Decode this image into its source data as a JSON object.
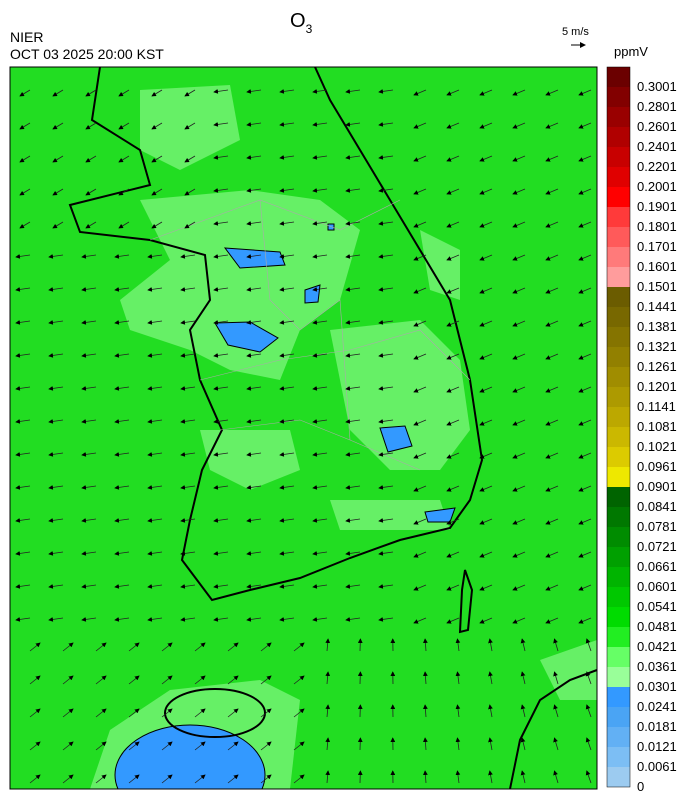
{
  "header": {
    "title": "O",
    "title_sub": "3",
    "agency": "NIER",
    "datetime": "OCT 03 2025 20:00 KST"
  },
  "wind_scale": {
    "label": "5 m/s"
  },
  "colorbar": {
    "unit": "ppmV",
    "labels": [
      "0.3001",
      "0.2801",
      "0.2601",
      "0.2401",
      "0.2201",
      "0.2001",
      "0.1901",
      "0.1801",
      "0.1701",
      "0.1601",
      "0.1501",
      "0.1441",
      "0.1381",
      "0.1321",
      "0.1261",
      "0.1201",
      "0.1141",
      "0.1081",
      "0.1021",
      "0.0961",
      "0.0901",
      "0.0841",
      "0.0781",
      "0.0721",
      "0.0661",
      "0.0601",
      "0.0541",
      "0.0481",
      "0.0421",
      "0.0361",
      "0.0301",
      "0.0241",
      "0.0181",
      "0.0121",
      "0.0061",
      "0"
    ],
    "colors": [
      "#6b0000",
      "#820000",
      "#990000",
      "#b00000",
      "#c80000",
      "#e00000",
      "#ff0000",
      "#ff3a3a",
      "#ff5a5a",
      "#ff7a7a",
      "#ff9c9c",
      "#6b5c00",
      "#786800",
      "#857400",
      "#928000",
      "#a08d00",
      "#ad9a00",
      "#bca800",
      "#cbb800",
      "#dccb00",
      "#eee800",
      "#006400",
      "#007800",
      "#008c00",
      "#00a000",
      "#00b400",
      "#00c800",
      "#00dc00",
      "#22ee22",
      "#66ff66",
      "#99ff99",
      "#3399ff",
      "#4aa4f4",
      "#62b0f4",
      "#7cbef4",
      "#9ccbf0"
    ]
  }
}
